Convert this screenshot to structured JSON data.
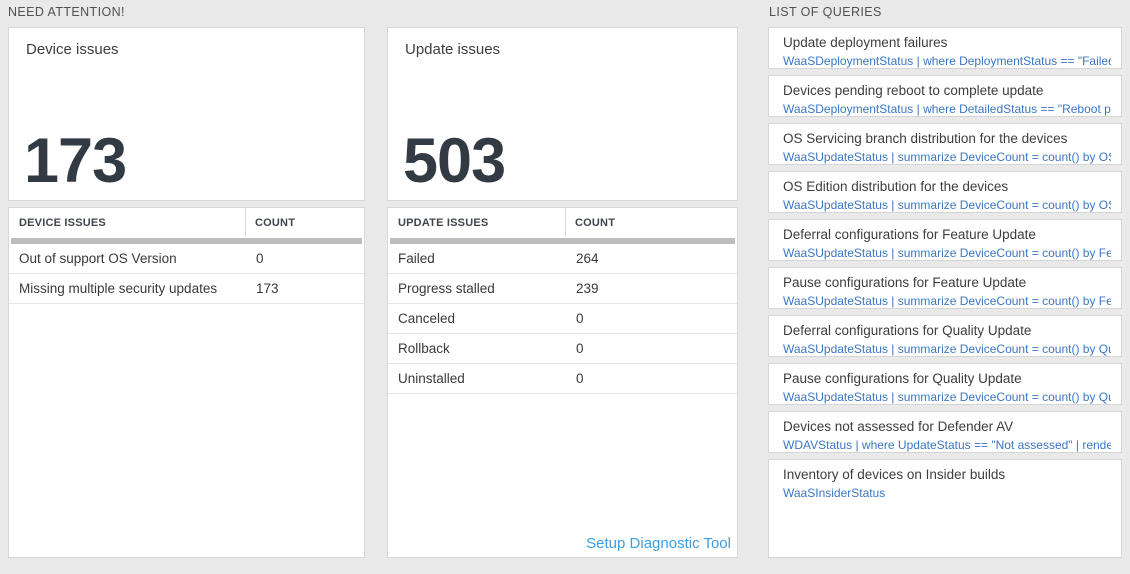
{
  "page": {
    "background_color": "#e9e9e9",
    "colors": {
      "big_number": "#323a43",
      "query_text_blue": "#3b76c4",
      "action_link_blue": "#3d9de2",
      "scrollbar_gray": "#bdbdbd"
    }
  },
  "sections": {
    "need_attention": "NEED ATTENTION!",
    "list_of_queries": "LIST OF QUERIES"
  },
  "device_issues": {
    "card_title": "Device issues",
    "big_number": "173",
    "table": {
      "header_label": "DEVICE ISSUES",
      "header_count": "COUNT",
      "rows": [
        {
          "label": "Out of support OS Version",
          "count": "0"
        },
        {
          "label": "Missing multiple security updates",
          "count": "173"
        }
      ]
    }
  },
  "update_issues": {
    "card_title": "Update issues",
    "big_number": "503",
    "table": {
      "header_label": "UPDATE ISSUES",
      "header_count": "COUNT",
      "rows": [
        {
          "label": "Failed",
          "count": "264"
        },
        {
          "label": "Progress stalled",
          "count": "239"
        },
        {
          "label": "Canceled",
          "count": "0"
        },
        {
          "label": "Rollback",
          "count": "0"
        },
        {
          "label": "Uninstalled",
          "count": "0"
        }
      ]
    },
    "link": "Setup Diagnostic Tool"
  },
  "queries": [
    {
      "title": "Update deployment failures",
      "query": "WaaSDeploymentStatus | where DeploymentStatus == \"Failed\" |..."
    },
    {
      "title": "Devices pending reboot to complete update",
      "query": "WaaSDeploymentStatus | where DetailedStatus == \"Reboot pend..."
    },
    {
      "title": "OS Servicing branch distribution for the devices",
      "query": "WaaSUpdateStatus | summarize DeviceCount = count() by OSSer..."
    },
    {
      "title": "OS Edition distribution for the devices",
      "query": "WaaSUpdateStatus | summarize DeviceCount = count() by OSEdit..."
    },
    {
      "title": "Deferral configurations for Feature Update",
      "query": "WaaSUpdateStatus | summarize DeviceCount = count() by Featur..."
    },
    {
      "title": "Pause configurations for Feature Update",
      "query": "WaaSUpdateStatus | summarize DeviceCount = count() by Featur..."
    },
    {
      "title": "Deferral configurations for Quality Update",
      "query": "WaaSUpdateStatus | summarize DeviceCount = count() by Qualit..."
    },
    {
      "title": "Pause configurations for Quality Update",
      "query": "WaaSUpdateStatus | summarize DeviceCount = count() by Qualit..."
    },
    {
      "title": "Devices not assessed for Defender AV",
      "query": "WDAVStatus | where UpdateStatus == \"Not assessed\" | render ta..."
    },
    {
      "title": "Inventory of devices on Insider builds",
      "query": "WaaSInsiderStatus"
    }
  ]
}
